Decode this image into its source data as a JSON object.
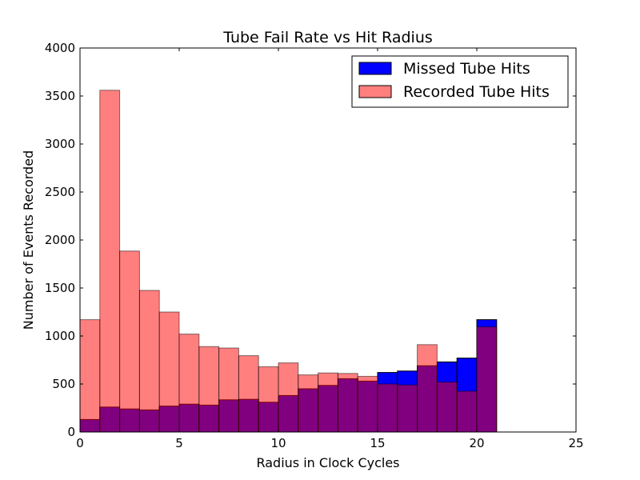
{
  "chart_data": {
    "type": "bar",
    "title": "Tube Fail Rate vs Hit Radius",
    "xlabel": "Radius in Clock Cycles",
    "ylabel": "Number of Events Recorded",
    "xlim": [
      0,
      25
    ],
    "ylim": [
      0,
      4000
    ],
    "xticks": [
      0,
      5,
      10,
      15,
      20,
      25
    ],
    "yticks": [
      0,
      500,
      1000,
      1500,
      2000,
      2500,
      3000,
      3500,
      4000
    ],
    "legend_position": "top-right",
    "grid": false,
    "bin_edges": [
      0,
      1,
      2,
      3,
      4,
      5,
      6,
      7,
      8,
      9,
      10,
      11,
      12,
      13,
      14,
      15,
      16,
      17,
      18,
      19,
      20,
      21
    ],
    "series": [
      {
        "name": "Missed Tube Hits",
        "color": "#0000ff",
        "values": [
          130,
          260,
          240,
          230,
          270,
          290,
          280,
          335,
          340,
          310,
          380,
          450,
          485,
          555,
          530,
          620,
          635,
          690,
          730,
          770,
          1170
        ]
      },
      {
        "name": "Recorded Tube Hits",
        "color": "#ff0000",
        "opacity": 0.5,
        "values": [
          1170,
          3560,
          1885,
          1475,
          1250,
          1020,
          890,
          875,
          795,
          680,
          720,
          595,
          615,
          610,
          580,
          500,
          490,
          910,
          520,
          425,
          1095
        ]
      }
    ]
  }
}
